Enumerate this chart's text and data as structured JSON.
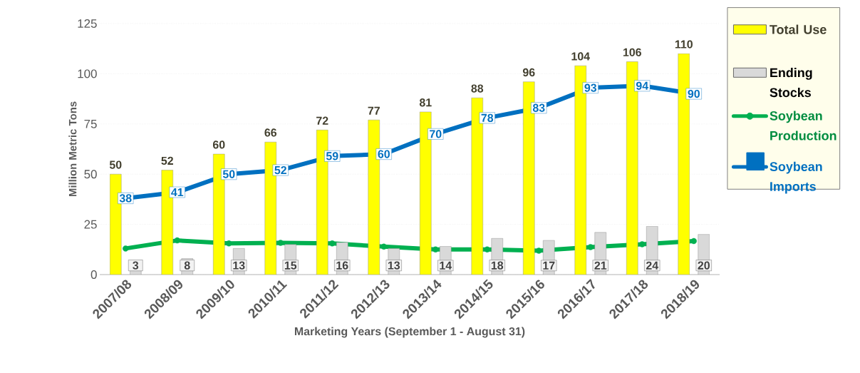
{
  "chart_data": {
    "type": "bar",
    "xlabel": "Marketing Years (September 1 - August 31)",
    "ylabel": "Million Metric Tons",
    "categories": [
      "2007/08",
      "2008/09",
      "2009/10",
      "2010/11",
      "2011/12",
      "2012/13",
      "2013/14",
      "2014/15",
      "2015/16",
      "2016/17",
      "2017/18",
      "2018/19"
    ],
    "ylim": [
      0,
      125
    ],
    "yticks": [
      0,
      25,
      50,
      75,
      100,
      125
    ],
    "grid": "y",
    "legend": "right",
    "series": [
      {
        "name": "Total Use",
        "color": "#ffff00",
        "values": [
          50,
          52,
          60,
          66,
          72,
          77,
          81,
          88,
          96,
          104,
          106,
          110
        ],
        "value_labels": [
          "50",
          "52",
          "60",
          "66",
          "72",
          "77",
          "81",
          "88",
          "96",
          "104",
          "106",
          "110"
        ]
      },
      {
        "name": "Ending Stocks",
        "color": "#d9d9d9",
        "values": [
          3,
          8,
          13,
          15,
          16,
          13,
          14,
          18,
          17,
          21,
          24,
          20
        ],
        "value_labels": [
          "3",
          "8",
          "13",
          "15",
          "16",
          "13",
          "14",
          "18",
          "17",
          "21",
          "24",
          "20"
        ]
      },
      {
        "name": "Soybean Production",
        "type": "line",
        "color": "#00b050",
        "marker": "circle",
        "values": [
          13,
          17,
          15.5,
          15.8,
          15.5,
          13.9,
          12.5,
          12.5,
          11.9,
          13.7,
          15.1,
          16.7
        ]
      },
      {
        "name": "Soybean Imports",
        "type": "line",
        "color": "#0070c0",
        "marker": "square",
        "values": [
          38,
          41,
          50,
          52,
          59,
          60,
          70,
          78,
          83,
          93,
          94,
          90
        ],
        "value_labels": [
          "38",
          "41",
          "50",
          "52",
          "59",
          "60",
          "70",
          "78",
          "83",
          "93",
          "94",
          "90"
        ]
      }
    ]
  }
}
